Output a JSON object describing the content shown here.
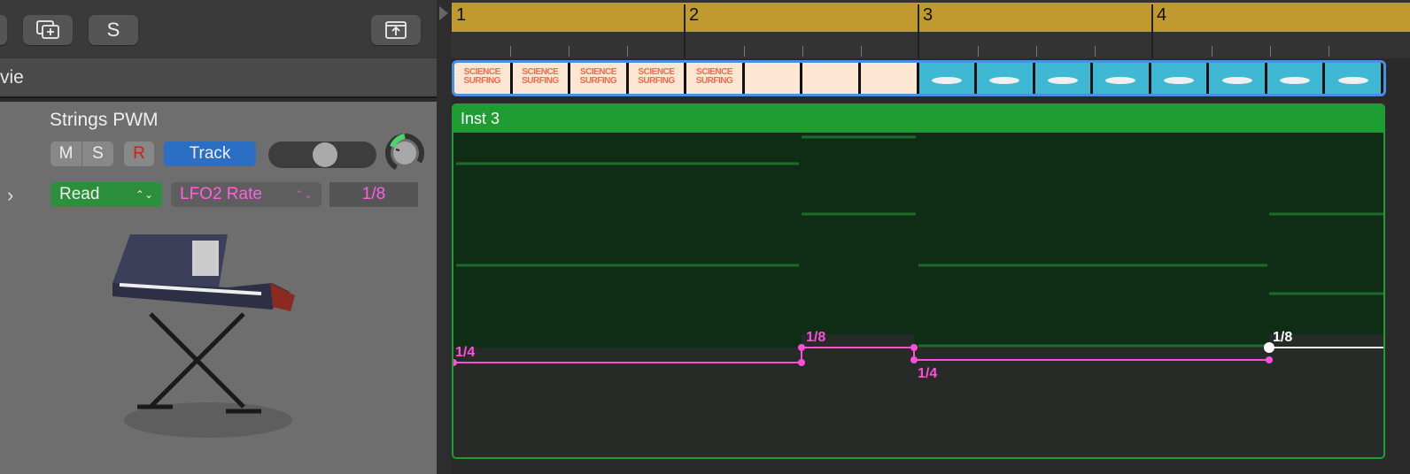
{
  "toolbar": {
    "duplicate_icon": "duplicate-track-icon",
    "s_label": "S",
    "upload_icon": "upload-icon"
  },
  "movie_track": {
    "label": "vie"
  },
  "track": {
    "name": "Strings PWM",
    "mute": "M",
    "solo": "S",
    "record": "R",
    "track_label": "Track",
    "automation_mode": "Read",
    "parameter": "LFO2 Rate",
    "value": "1/8",
    "pan_level": 0.6,
    "volume_knob": 0.25
  },
  "ruler": {
    "bars": [
      "1",
      "2",
      "3",
      "4"
    ]
  },
  "movie_thumbs": [
    "SCIENCE SURFING",
    "SCIENCE SURFING",
    "SCIENCE SURFING",
    "SCIENCE SURFING",
    "SCIENCE SURFING",
    "",
    "",
    "",
    "",
    "",
    "",
    "",
    "",
    "",
    "",
    ""
  ],
  "region": {
    "name": "Inst 3"
  },
  "automation": {
    "points": [
      {
        "label": "1/4",
        "color": "#ff4fd8"
      },
      {
        "label": "1/8",
        "color": "#ff4fd8"
      },
      {
        "label": "1/4",
        "color": "#ff4fd8"
      },
      {
        "label": "1/8",
        "color": "#ffffff"
      }
    ]
  },
  "colors": {
    "accent": "#2a6fc4",
    "read": "#2c8f3c",
    "automation": "#ff4fd8",
    "region": "#1e9e32",
    "ruler": "#c09a2e"
  }
}
